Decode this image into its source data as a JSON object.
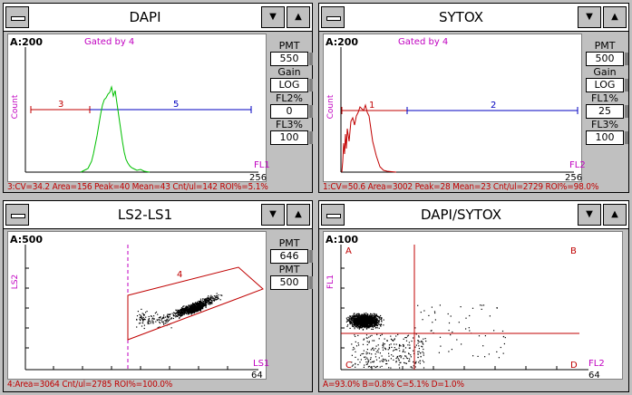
{
  "panels": [
    {
      "title": "DAPI",
      "count_label": "A:200",
      "gate_text": "Gated by 4",
      "y_axis": "Count",
      "x_axis": "FL1",
      "x_max": "256",
      "status": "3:CV=34.2 Area=156 Peak=40 Mean=43 Cnt/ul=142 ROI%=5.1%",
      "regions": [
        {
          "id": "3"
        },
        {
          "id": "5"
        }
      ],
      "controls": [
        {
          "label": "PMT",
          "value": "550"
        },
        {
          "label": "Gain",
          "value": "LOG"
        },
        {
          "label": "FL2%",
          "value": "0"
        },
        {
          "label": "FL3%",
          "value": "100"
        }
      ]
    },
    {
      "title": "SYTOX",
      "count_label": "A:200",
      "gate_text": "Gated by 4",
      "y_axis": "Count",
      "x_axis": "FL2",
      "x_max": "256",
      "status": "1:CV=50.6 Area=3002 Peak=28 Mean=23 Cnt/ul=2729 ROI%=98.0%",
      "regions": [
        {
          "id": "1"
        },
        {
          "id": "2"
        }
      ],
      "controls": [
        {
          "label": "PMT",
          "value": "500"
        },
        {
          "label": "Gain",
          "value": "LOG"
        },
        {
          "label": "FL1%",
          "value": "25"
        },
        {
          "label": "FL3%",
          "value": "100"
        }
      ]
    },
    {
      "title": "LS2-LS1",
      "count_label": "A:500",
      "y_axis": "LS2",
      "x_axis": "LS1",
      "x_max": "64",
      "status": "4:Area=3064 Cnt/ul=2785 ROI%=100.0%",
      "region": "4",
      "controls": [
        {
          "label": "PMT",
          "value": "646"
        },
        {
          "label": "PMT",
          "value": "500"
        }
      ]
    },
    {
      "title": "DAPI/SYTOX",
      "count_label": "A:100",
      "y_axis": "FL1",
      "x_axis": "FL2",
      "x_max": "64",
      "quadrants": [
        "A",
        "B",
        "C",
        "D"
      ],
      "status": "A=93.0% B=0.8% C=5.1% D=1.0%"
    }
  ],
  "colors": {
    "histogram_dapi": "#00c000",
    "histogram_sytox": "#c00000",
    "region_red": "#c00000",
    "region_blue": "#0000c0",
    "magenta": "#c000c0"
  },
  "icons": {
    "system_menu": "system-menu-icon",
    "dropdown": "chevron-down-icon",
    "maximize": "chevron-up-icon"
  }
}
